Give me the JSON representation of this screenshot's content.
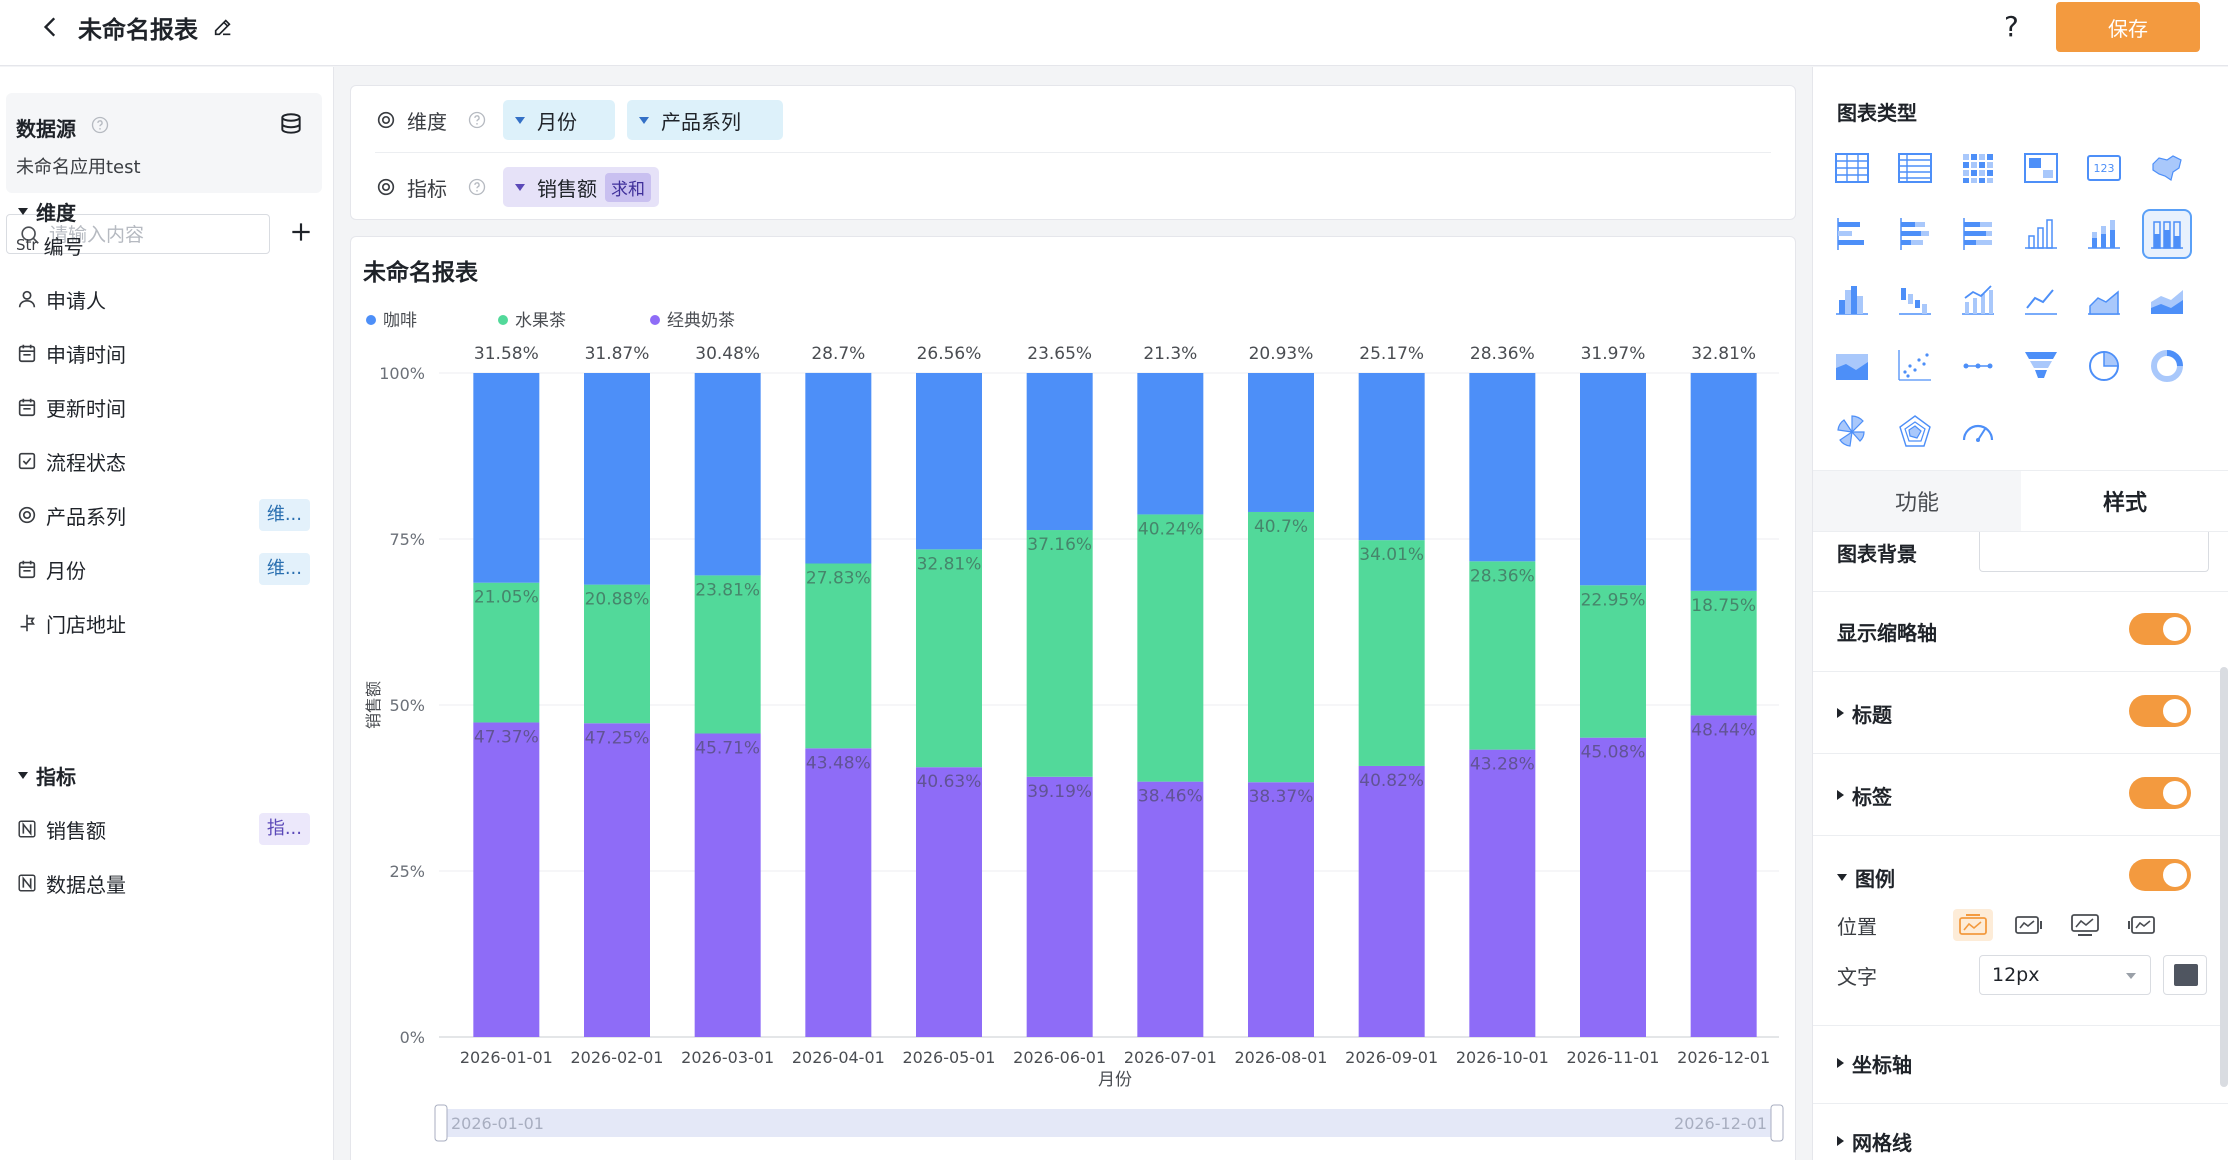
{
  "header": {
    "title": "未命名报表",
    "help_label": "?",
    "save_label": "保存"
  },
  "datasource": {
    "title": "数据源",
    "name": "未命名应用test"
  },
  "search": {
    "placeholder": "请输入内容"
  },
  "dimension_group": {
    "title": "维度",
    "fields": [
      {
        "icon": "Str",
        "label": "编号"
      },
      {
        "icon": "user-icon",
        "label": "申请人"
      },
      {
        "icon": "calendar-icon",
        "label": "申请时间"
      },
      {
        "icon": "calendar-icon",
        "label": "更新时间"
      },
      {
        "icon": "checkbox-icon",
        "label": "流程状态"
      },
      {
        "icon": "target-icon",
        "label": "产品系列",
        "tag": "维..."
      },
      {
        "icon": "calendar-icon",
        "label": "月份",
        "tag": "维..."
      },
      {
        "icon": "location-icon",
        "label": "门店地址"
      }
    ]
  },
  "indicator_group": {
    "title": "指标",
    "fields": [
      {
        "icon": "N",
        "label": "销售额",
        "tag": "指..."
      },
      {
        "icon": "N",
        "label": "数据总量"
      }
    ]
  },
  "config": {
    "dimension_label": "维度",
    "dimension_pills": [
      "月份",
      "产品系列"
    ],
    "indicator_label": "指标",
    "indicator_pill": "销售额",
    "indicator_agg": "求和"
  },
  "chart_card": {
    "title": "未命名报表"
  },
  "chart_data": {
    "type": "bar",
    "stacked": "percent",
    "categories": [
      "2026-01-01",
      "2026-02-01",
      "2026-03-01",
      "2026-04-01",
      "2026-05-01",
      "2026-06-01",
      "2026-07-01",
      "2026-08-01",
      "2026-09-01",
      "2026-10-01",
      "2026-11-01",
      "2026-12-01"
    ],
    "series": [
      {
        "name": "经典奶茶",
        "color": "#8e6cf7",
        "values": [
          47.37,
          47.25,
          45.71,
          43.48,
          40.63,
          39.19,
          38.46,
          38.37,
          40.82,
          43.28,
          45.08,
          48.44
        ],
        "labels": [
          "47.37%",
          "47.25%",
          "45.71%",
          "43.48%",
          "40.63%",
          "39.19%",
          "38.46%",
          "38.37%",
          "40.82%",
          "43.28%",
          "45.08%",
          "48.44%"
        ]
      },
      {
        "name": "水果茶",
        "color": "#52d99a",
        "values": [
          21.05,
          20.88,
          23.81,
          27.83,
          32.81,
          37.16,
          40.24,
          40.7,
          34.01,
          28.36,
          22.95,
          18.75
        ],
        "labels": [
          "21.05%",
          "20.88%",
          "23.81%",
          "27.83%",
          "32.81%",
          "37.16%",
          "40.24%",
          "40.7%",
          "34.01%",
          "28.36%",
          "22.95%",
          "18.75%"
        ]
      },
      {
        "name": "咖啡",
        "color": "#4d8ff8",
        "values": [
          31.58,
          31.87,
          30.48,
          28.7,
          26.56,
          23.65,
          21.3,
          20.93,
          25.17,
          28.36,
          31.97,
          32.81
        ],
        "labels": [
          "31.58%",
          "31.87%",
          "30.48%",
          "28.7%",
          "26.56%",
          "23.65%",
          "21.3%",
          "20.93%",
          "25.17%",
          "28.36%",
          "31.97%",
          "32.81%"
        ]
      }
    ],
    "legend": [
      "咖啡",
      "水果茶",
      "经典奶茶"
    ],
    "legend_position": "top-left",
    "xlabel": "月份",
    "ylabel": "销售额",
    "yticks": [
      "0%",
      "25%",
      "50%",
      "75%",
      "100%"
    ],
    "ylim": [
      0,
      100
    ],
    "grid": true,
    "zoom_start_label": "2026-01-01",
    "zoom_end_label": "2026-12-01"
  },
  "right_panel": {
    "chart_types_title": "图表类型",
    "chart_types": [
      "table-icon",
      "detail-table-icon",
      "cross-table-icon",
      "pivot-icon",
      "kpi-card-icon",
      "map-icon",
      "bar-h-icon",
      "bar-h-stack-icon",
      "bar-h-percent-icon",
      "column-icon",
      "column-stack-icon",
      "column-percent-icon",
      "histogram-icon",
      "waterfall-icon",
      "combo-icon",
      "line-icon",
      "area-icon",
      "area-stack-icon",
      "area-percent-icon",
      "scatter-icon",
      "dumbbell-icon",
      "funnel-icon",
      "pie-icon",
      "donut-icon",
      "rose-icon",
      "radar-icon",
      "gauge-icon"
    ],
    "selected_chart_type": "column-percent-icon",
    "kpi_label": "123",
    "tabs": {
      "function": "功能",
      "style": "样式"
    },
    "style": {
      "background_label": "图表背景",
      "thumbnail_axis_label": "显示缩略轴",
      "title_label": "标题",
      "tag_label": "标签",
      "legend_label": "图例",
      "position_label": "位置",
      "text_label": "文字",
      "font_size": "12px",
      "axis_label": "坐标轴",
      "grid_label": "网格线"
    }
  },
  "colors": {
    "accent": "#f39a3f",
    "coffee": "#4d8ff8",
    "fruit_tea": "#52d99a",
    "milk_tea": "#8e6cf7"
  }
}
